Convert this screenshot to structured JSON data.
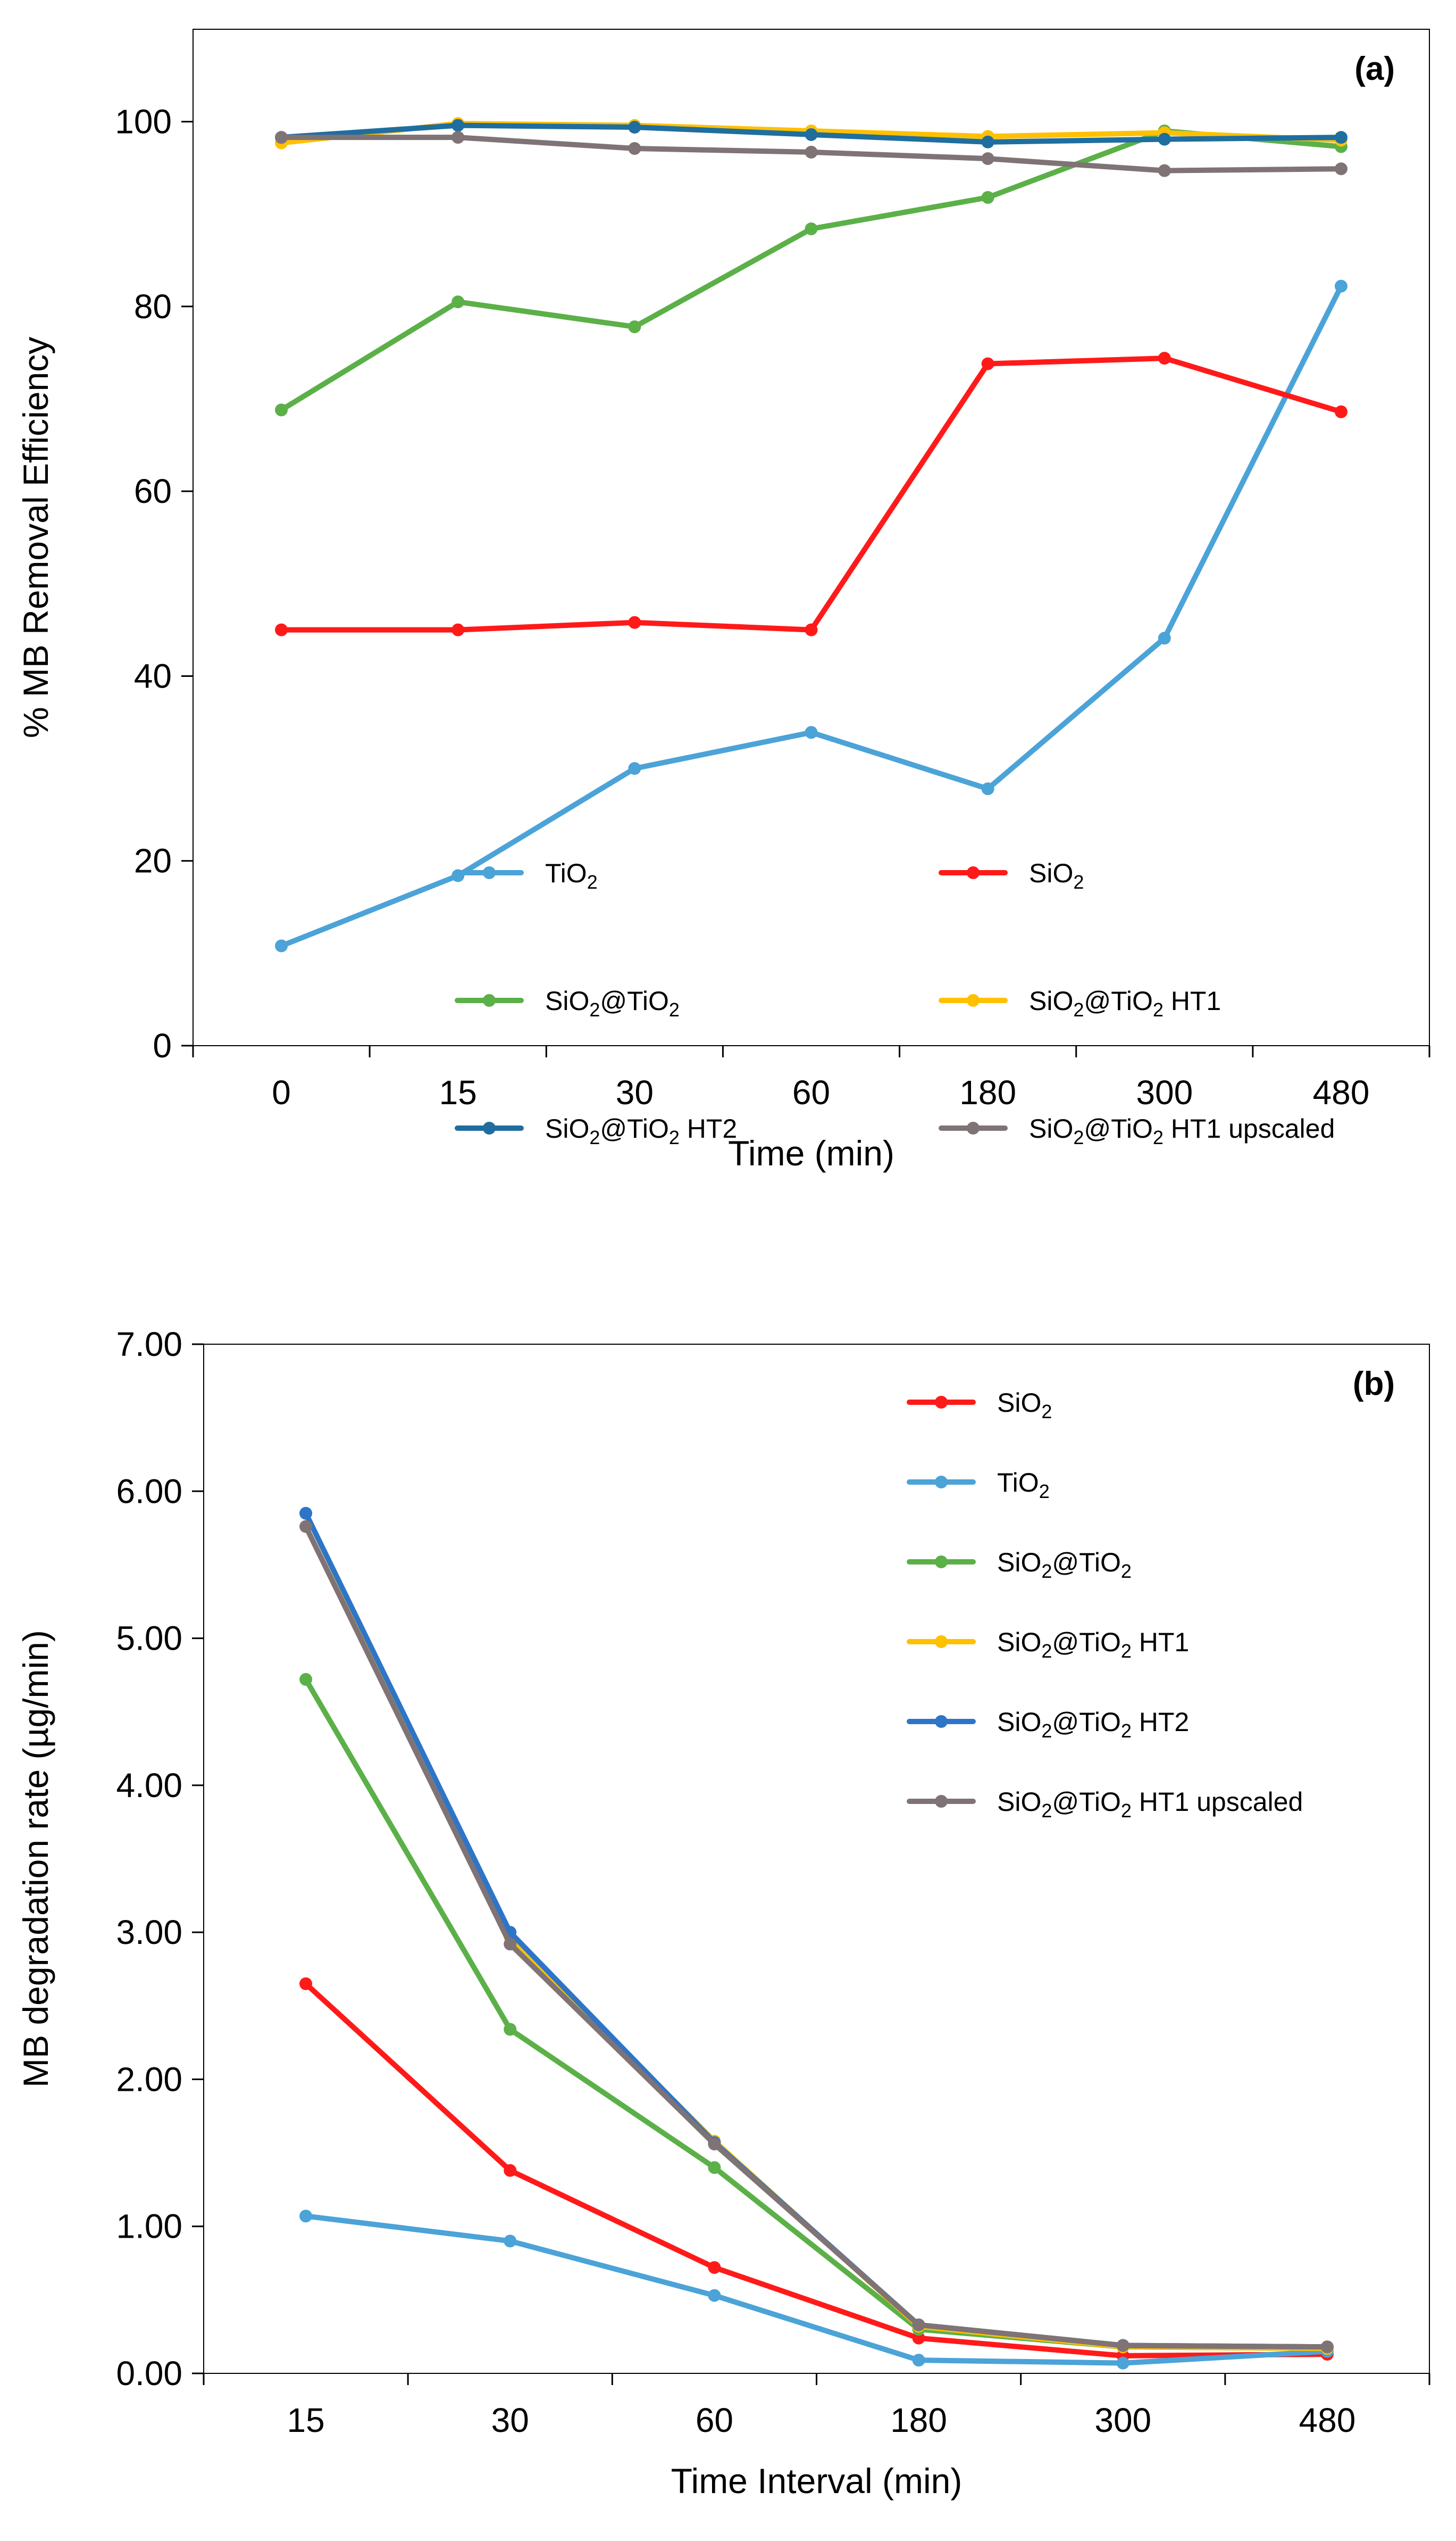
{
  "chart_data": [
    {
      "type": "line",
      "panel_label": "(a)",
      "title": "",
      "xlabel": "Time (min)",
      "ylabel": "% MB Removal Efficiency",
      "categories": [
        "0",
        "15",
        "30",
        "60",
        "180",
        "300",
        "480"
      ],
      "ylim": [
        0,
        110
      ],
      "yticks": [
        0,
        20,
        40,
        60,
        80,
        100
      ],
      "ytick_labels": [
        "0",
        "20",
        "40",
        "60",
        "80",
        "100"
      ],
      "grid": false,
      "legend_placement": "bottom",
      "series": [
        {
          "name": "TiO2",
          "name_main": "TiO",
          "name_sub": "2",
          "name_suffix": "",
          "color": "#4BA3D8",
          "values": [
            10.8,
            18.4,
            30.0,
            33.9,
            27.8,
            44.1,
            82.2
          ]
        },
        {
          "name": "SiO2",
          "name_main": "SiO",
          "name_sub": "2",
          "name_suffix": "",
          "color": "#FF1A1A",
          "values": [
            45.0,
            45.0,
            45.8,
            45.0,
            73.8,
            74.4,
            68.6
          ]
        },
        {
          "name": "SiO2@TiO2",
          "name_main": "SiO",
          "name_sub": "2",
          "name_suffix": "@TiO",
          "name_sub2": "2",
          "name_tail": "",
          "color": "#5BB048",
          "values": [
            68.8,
            80.5,
            77.8,
            88.4,
            91.8,
            99.0,
            97.3
          ]
        },
        {
          "name": "SiO2@TiO2 HT1",
          "name_main": "SiO",
          "name_sub": "2",
          "name_suffix": "@TiO",
          "name_sub2": "2",
          "name_tail": " HT1",
          "color": "#FFC000",
          "values": [
            97.7,
            99.8,
            99.6,
            99.0,
            98.4,
            98.8,
            98.0
          ]
        },
        {
          "name": "SiO2@TiO2 HT2",
          "name_main": "SiO",
          "name_sub": "2",
          "name_suffix": "@TiO",
          "name_sub2": "2",
          "name_tail": " HT2",
          "color": "#1F6E9F",
          "values": [
            98.3,
            99.6,
            99.4,
            98.6,
            97.8,
            98.1,
            98.3
          ]
        },
        {
          "name": "SiO2@TiO2 HT1 upscaled",
          "name_main": "SiO",
          "name_sub": "2",
          "name_suffix": "@TiO",
          "name_sub2": "2",
          "name_tail": " HT1 upscaled",
          "color": "#7F7375",
          "values": [
            98.3,
            98.3,
            97.1,
            96.7,
            96.0,
            94.7,
            94.9
          ]
        }
      ]
    },
    {
      "type": "line",
      "panel_label": "(b)",
      "title": "",
      "xlabel": "Time Interval (min)",
      "ylabel": "MB degradation rate (µg/min)",
      "categories": [
        "15",
        "30",
        "60",
        "180",
        "300",
        "480"
      ],
      "ylim": [
        0,
        7
      ],
      "yticks": [
        0,
        1,
        2,
        3,
        4,
        5,
        6,
        7
      ],
      "ytick_labels": [
        "0.00",
        "1.00",
        "2.00",
        "3.00",
        "4.00",
        "5.00",
        "6.00",
        "7.00"
      ],
      "grid": false,
      "legend_placement": "top-right",
      "series": [
        {
          "name": "SiO2",
          "name_main": "SiO",
          "name_sub": "2",
          "name_suffix": "",
          "color": "#FF1A1A",
          "values": [
            2.65,
            1.38,
            0.72,
            0.24,
            0.12,
            0.13
          ]
        },
        {
          "name": "TiO2",
          "name_main": "TiO",
          "name_sub": "2",
          "name_suffix": "",
          "color": "#4BA3D8",
          "values": [
            1.07,
            0.9,
            0.53,
            0.09,
            0.07,
            0.15
          ]
        },
        {
          "name": "SiO2@TiO2",
          "name_main": "SiO",
          "name_sub": "2",
          "name_suffix": "@TiO",
          "name_sub2": "2",
          "name_tail": "",
          "color": "#5BB048",
          "values": [
            4.72,
            2.34,
            1.4,
            0.3,
            0.18,
            0.17
          ]
        },
        {
          "name": "SiO2@TiO2 HT1",
          "name_main": "SiO",
          "name_sub": "2",
          "name_suffix": "@TiO",
          "name_sub2": "2",
          "name_tail": " HT1",
          "color": "#FFC000",
          "values": [
            5.85,
            2.97,
            1.58,
            0.32,
            0.18,
            0.17
          ]
        },
        {
          "name": "SiO2@TiO2 HT2",
          "name_main": "SiO",
          "name_sub": "2",
          "name_suffix": "@TiO",
          "name_sub2": "2",
          "name_tail": " HT2",
          "color": "#2E75C8",
          "values": [
            5.85,
            3.0,
            1.57,
            0.33,
            0.19,
            0.18
          ]
        },
        {
          "name": "SiO2@TiO2 HT1 upscaled",
          "name_main": "SiO",
          "name_sub": "2",
          "name_suffix": "@TiO",
          "name_sub2": "2",
          "name_tail": " HT1 upscaled",
          "color": "#7F7375",
          "values": [
            5.76,
            2.92,
            1.56,
            0.33,
            0.19,
            0.18
          ]
        }
      ]
    }
  ]
}
